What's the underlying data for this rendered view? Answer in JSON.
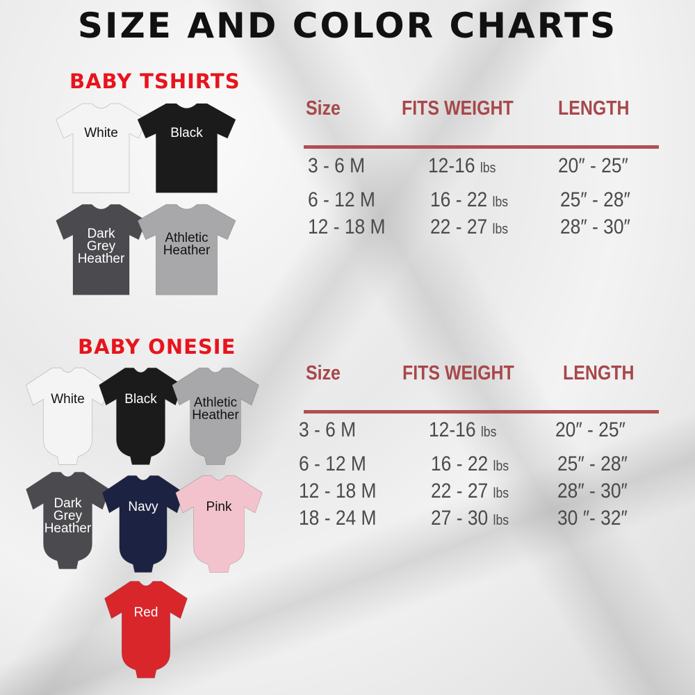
{
  "title": "SIZE AND COLOR CHARTS",
  "tshirts": {
    "heading": "BABY TSHIRTS",
    "colors": [
      {
        "label": "White",
        "fill": "#f4f4f4",
        "text": "#111111"
      },
      {
        "label": "Black",
        "fill": "#1b1b1b",
        "text": "#ffffff"
      },
      {
        "label": "Dark Grey Heather",
        "fill": "#4b4b4f",
        "text": "#ffffff"
      },
      {
        "label": "Athletic Heather",
        "fill": "#a8a8aa",
        "text": "#111111"
      }
    ],
    "table": {
      "headers": [
        "Size",
        "FITS WEIGHT",
        "LENGTH"
      ],
      "rows": [
        {
          "size": "3 - 6 M",
          "weight": "12-16",
          "unit": "lbs",
          "length": "20″ - 25″"
        },
        {
          "size": "6 - 12 M",
          "weight": "16 - 22",
          "unit": "lbs",
          "length": "25″ - 28″"
        },
        {
          "size": "12 - 18 M",
          "weight": "22 - 27",
          "unit": "lbs",
          "length": "28″ - 30″"
        }
      ]
    }
  },
  "onesies": {
    "heading": "BABY ONESIE",
    "colors": [
      {
        "label": "White",
        "fill": "#f4f4f4",
        "text": "#111111"
      },
      {
        "label": "Black",
        "fill": "#1b1b1b",
        "text": "#ffffff"
      },
      {
        "label": "Athletic Heather",
        "fill": "#a8a8aa",
        "text": "#111111"
      },
      {
        "label": "Dark Grey Heather",
        "fill": "#4b4b4f",
        "text": "#ffffff"
      },
      {
        "label": "Navy",
        "fill": "#1c2342",
        "text": "#ffffff"
      },
      {
        "label": "Pink",
        "fill": "#f3c3cd",
        "text": "#111111"
      },
      {
        "label": "Red",
        "fill": "#d8262b",
        "text": "#ffffff"
      }
    ],
    "table": {
      "headers": [
        "Size",
        "FITS WEIGHT",
        "LENGTH"
      ],
      "rows": [
        {
          "size": "3 - 6 M",
          "weight": "12-16",
          "unit": "lbs",
          "length": "20″ - 25″"
        },
        {
          "size": "6 - 12 M",
          "weight": "16 - 22",
          "unit": "lbs",
          "length": "25″ - 28″"
        },
        {
          "size": "12 - 18 M",
          "weight": "22 - 27",
          "unit": "lbs",
          "length": "28″ - 30″"
        },
        {
          "size": "18 - 24 M",
          "weight": "27 - 30",
          "unit": "lbs",
          "length": "30 ″- 32″"
        }
      ]
    }
  }
}
